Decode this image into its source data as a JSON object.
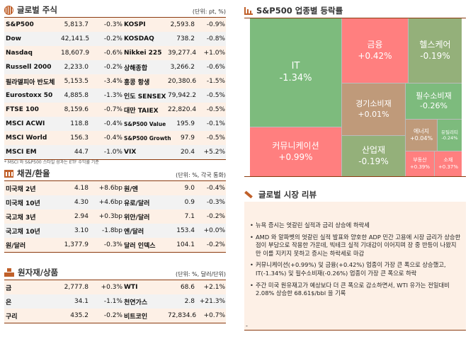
{
  "stocks": {
    "title": "글로벌 주식",
    "unit": "(단위: pt, %)",
    "note": "* MSCI 와 S&P500 스타일 성과는 ETF 수익률 기준",
    "rows": [
      [
        "S&P500",
        "5,813.7",
        "-0.3%",
        "KOSPI",
        "2,593.8",
        "-0.9%"
      ],
      [
        "Dow",
        "42,141.5",
        "-0.2%",
        "KOSDAQ",
        "738.2",
        "-0.8%"
      ],
      [
        "Nasdaq",
        "18,607.9",
        "-0.6%",
        "Nikkei 225",
        "39,277.4",
        "+1.0%"
      ],
      [
        "Russell 2000",
        "2,233.0",
        "-0.2%",
        "상해종합",
        "3,266.2",
        "-0.6%"
      ],
      [
        "필라델피아 반도체",
        "5,153.5",
        "-3.4%",
        "홍콩 항생",
        "20,380.6",
        "-1.5%"
      ],
      [
        "Eurostoxx 50",
        "4,885.8",
        "-1.3%",
        "인도 SENSEX",
        "79,942.2",
        "-0.5%"
      ],
      [
        "FTSE 100",
        "8,159.6",
        "-0.7%",
        "대만 TAIEX",
        "22,820.4",
        "-0.5%"
      ],
      [
        "MSCI ACWI",
        "118.8",
        "-0.4%",
        "S&P500 Value",
        "195.9",
        "-0.1%"
      ],
      [
        "MSCI World",
        "156.3",
        "-0.4%",
        "S&P500 Growth",
        "97.9",
        "-0.5%"
      ],
      [
        "MSCI EM",
        "44.7",
        "-1.0%",
        "VIX",
        "20.4",
        "+5.2%"
      ]
    ]
  },
  "bonds": {
    "title": "채권/환율",
    "unit": "(단위: %, 각국 통화)",
    "rows": [
      [
        "미국채 2년",
        "4.18",
        "+8.6bp",
        "원/엔",
        "9.0",
        "-0.4%"
      ],
      [
        "미국채 10년",
        "4.30",
        "+4.6bp",
        "유로/달러",
        "0.9",
        "-0.3%"
      ],
      [
        "국고채 3년",
        "2.94",
        "+0.3bp",
        "위안/달러",
        "7.1",
        "-0.2%"
      ],
      [
        "국고채 10년",
        "3.10",
        "-1.8bp",
        "엔/달러",
        "153.4",
        "+0.0%"
      ],
      [
        "원/달러",
        "1,377.9",
        "-0.3%",
        "달러 인덱스",
        "104.1",
        "-0.2%"
      ]
    ]
  },
  "commodities": {
    "title": "원자재/상품",
    "unit": "(단위: %, 달러/단위)",
    "rows": [
      [
        "금",
        "2,777.8",
        "+0.3%",
        "WTI",
        "68.6",
        "+2.1%"
      ],
      [
        "은",
        "34.1",
        "-1.1%",
        "천연가스",
        "2.8",
        "+21.3%"
      ],
      [
        "구리",
        "435.2",
        "-0.2%",
        "비트코인",
        "72,834.6",
        "+0.7%"
      ]
    ]
  },
  "sectors": {
    "title": "S&P500 업종별 등락률",
    "colors": {
      "up": "#ff7f7f",
      "down": "#7dbb7d",
      "mild_down": "#94b07a",
      "flat": "#bf9a7a"
    },
    "items": [
      {
        "name": "IT",
        "value": "-1.34%"
      },
      {
        "name": "커뮤니케이션",
        "value": "+0.99%"
      },
      {
        "name": "금융",
        "value": "+0.42%"
      },
      {
        "name": "헬스케어",
        "value": "-0.19%"
      },
      {
        "name": "경기소비재",
        "value": "+0.01%"
      },
      {
        "name": "산업재",
        "value": "-0.19%"
      },
      {
        "name": "필수소비재",
        "value": "-0.26%"
      },
      {
        "name": "에너지",
        "value": "+0.04%"
      },
      {
        "name": "유틸리티",
        "value": "-0.24%"
      },
      {
        "name": "부동산",
        "value": "+0.39%"
      },
      {
        "name": "소재",
        "value": "+0.37%"
      }
    ]
  },
  "review": {
    "title": "글로벌 시장 리뷰",
    "bullets": [
      "뉴욕 증시는 엇갈린 실적과 금리 상승에 하락세",
      "AMD 와 알파벳의 엇갈린 실적 발표와 양호한 ADP 민간 고용에 시장 금리가 상승한 점이 부담으로 작용한 가운데, 빅테크 실적 기대감이 이어지며 장 중 반등이 나왔지만 이를 지키지 못하고 증시는 하락세로 마감",
      "커뮤니케이션(+0.99%) 및 금융(+0.42%) 업종이 가장 큰 폭으로 상승했고, IT(-1.34%) 및 필수소비재(-0.26%) 업종이 가장 큰 폭으로 하락",
      "주간 미국 원유재고가 예상보다 더 큰 폭으로 감소하면서, WTI 유가는 전일대비 2.08% 상승한 68.61$/bbl 을 기록"
    ],
    "trailing": "-"
  }
}
